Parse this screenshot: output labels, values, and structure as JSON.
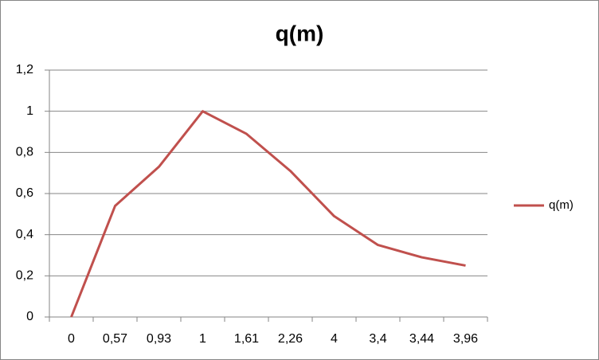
{
  "chart_data": {
    "type": "line",
    "title": "q(m)",
    "categories": [
      "0",
      "0,57",
      "0,93",
      "1",
      "1,61",
      "2,26",
      "4",
      "3,4",
      "3,44",
      "3,96"
    ],
    "series": [
      {
        "name": "q(m)",
        "color": "#c0504d",
        "values": [
          0,
          0.54,
          0.73,
          1.0,
          0.89,
          0.71,
          0.49,
          0.35,
          0.29,
          0.25
        ]
      }
    ],
    "ylim": [
      0,
      1.2
    ],
    "yticks": [
      0,
      {
        "value": 0.2,
        "label": "0,2"
      },
      {
        "value": 0.4,
        "label": "0,4"
      },
      {
        "value": 0.6,
        "label": "0,6"
      },
      {
        "value": 0.8,
        "label": "0,8"
      },
      1,
      {
        "value": 1.2,
        "label": "1,2"
      }
    ],
    "grid": true,
    "legend": "right"
  }
}
